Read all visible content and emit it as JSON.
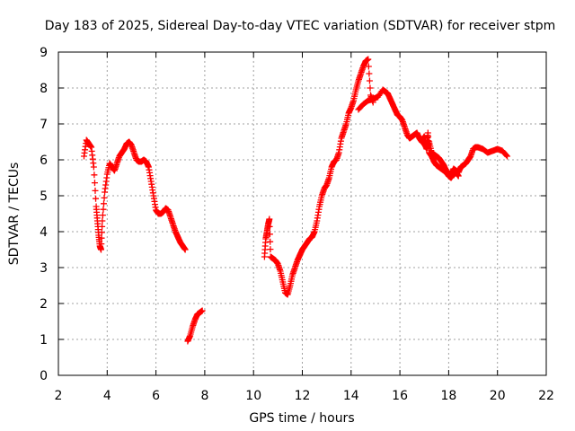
{
  "chart_data": {
    "type": "scatter",
    "title": "Day 183 of 2025, Sidereal Day-to-day VTEC variation (SDTVAR) for receiver stpm",
    "xlabel": "GPS time / hours",
    "ylabel": "SDTVAR / TECUs",
    "xlim": [
      2,
      22
    ],
    "ylim": [
      0,
      9
    ],
    "xticks": [
      2,
      4,
      6,
      8,
      10,
      12,
      14,
      16,
      18,
      20,
      22
    ],
    "yticks": [
      0,
      1,
      2,
      3,
      4,
      5,
      6,
      7,
      8,
      9
    ],
    "grid": true,
    "marker": "+",
    "series": [
      {
        "color": "#ff0000",
        "segments": [
          {
            "x": [
              3.05,
              3.15,
              3.25,
              3.35,
              3.45,
              3.55,
              3.6,
              3.65,
              3.7,
              3.75,
              3.8,
              3.9,
              4.0,
              4.1,
              4.2,
              4.3,
              4.4,
              4.5,
              4.6,
              4.7,
              4.8,
              4.9,
              5.0,
              5.1,
              5.2,
              5.3,
              5.4,
              5.5,
              5.6,
              5.7,
              5.8,
              5.9,
              6.0,
              6.1,
              6.2,
              6.3,
              6.4,
              6.5,
              6.6,
              6.7,
              6.8,
              6.9,
              7.0,
              7.1,
              7.2
            ],
            "y": [
              6.1,
              6.55,
              6.45,
              6.35,
              5.8,
              4.7,
              4.3,
              3.9,
              3.6,
              3.5,
              4.3,
              5.1,
              5.6,
              5.9,
              5.8,
              5.7,
              5.9,
              6.1,
              6.2,
              6.3,
              6.45,
              6.5,
              6.4,
              6.2,
              6.0,
              5.95,
              5.95,
              6.0,
              5.95,
              5.8,
              5.4,
              5.0,
              4.6,
              4.5,
              4.5,
              4.55,
              4.65,
              4.6,
              4.4,
              4.2,
              4.0,
              3.85,
              3.7,
              3.6,
              3.5
            ]
          },
          {
            "x": [
              7.3,
              7.4,
              7.5,
              7.6,
              7.7,
              7.8,
              7.9
            ],
            "y": [
              0.95,
              1.1,
              1.35,
              1.55,
              1.7,
              1.75,
              1.8
            ]
          },
          {
            "x": [
              10.45,
              10.5,
              10.55,
              10.6,
              10.65,
              10.7,
              10.8,
              10.9,
              11.0,
              11.1,
              11.2,
              11.3,
              11.4,
              11.5,
              11.6,
              11.7,
              11.8,
              11.9,
              12.0,
              12.1,
              12.2,
              12.3,
              12.4,
              12.5,
              12.6,
              12.7,
              12.8,
              12.9,
              13.0,
              13.1,
              13.2,
              13.3,
              13.4,
              13.5,
              13.6,
              13.7,
              13.8,
              13.9,
              14.0,
              14.1,
              14.2,
              14.3,
              14.4,
              14.5,
              14.6,
              14.7,
              14.8,
              14.9
            ],
            "y": [
              3.3,
              3.8,
              4.0,
              4.2,
              4.35,
              3.3,
              3.25,
              3.2,
              3.1,
              2.9,
              2.6,
              2.3,
              2.25,
              2.5,
              2.8,
              3.0,
              3.2,
              3.35,
              3.5,
              3.6,
              3.7,
              3.8,
              3.85,
              4.0,
              4.3,
              4.7,
              5.0,
              5.2,
              5.3,
              5.5,
              5.8,
              5.95,
              6.0,
              6.2,
              6.6,
              6.8,
              7.0,
              7.3,
              7.45,
              7.65,
              7.95,
              8.2,
              8.4,
              8.6,
              8.75,
              8.8,
              7.8,
              7.6
            ]
          },
          {
            "x": [
              14.3,
              14.5,
              14.7,
              14.9,
              15.1,
              15.3,
              15.4,
              15.5,
              15.6,
              15.7,
              15.8,
              15.9,
              16.0,
              16.1,
              16.2,
              16.3,
              16.4,
              16.5,
              16.6,
              16.7,
              16.8,
              16.9,
              17.0,
              17.1,
              17.2,
              17.3,
              17.4,
              17.5,
              17.6,
              17.7,
              17.8,
              17.9,
              18.0,
              18.1,
              18.2,
              18.3,
              18.4,
              18.5,
              18.6,
              18.7,
              18.8,
              18.9,
              19.0,
              19.1,
              19.2,
              19.4,
              19.6,
              19.8,
              20.0,
              20.2,
              20.4
            ],
            "y": [
              7.4,
              7.55,
              7.65,
              7.7,
              7.75,
              7.95,
              7.9,
              7.85,
              7.7,
              7.55,
              7.4,
              7.25,
              7.2,
              7.1,
              6.9,
              6.7,
              6.6,
              6.65,
              6.7,
              6.75,
              6.6,
              6.5,
              6.45,
              6.3,
              6.5,
              6.2,
              6.15,
              6.1,
              6.05,
              5.95,
              5.85,
              5.7,
              5.6,
              5.6,
              5.75,
              5.7,
              5.65,
              5.8,
              5.85,
              5.9,
              6.0,
              6.1,
              6.3,
              6.35,
              6.35,
              6.3,
              6.2,
              6.25,
              6.3,
              6.25,
              6.1
            ]
          },
          {
            "x": [
              16.9,
              17.0,
              17.1,
              17.15,
              17.2,
              17.3,
              17.4,
              17.5,
              17.6,
              17.7,
              17.8,
              17.9,
              18.0,
              18.1,
              18.2,
              18.3,
              18.4
            ],
            "y": [
              6.55,
              6.65,
              6.4,
              6.75,
              6.2,
              6.1,
              5.95,
              5.85,
              5.8,
              5.75,
              5.7,
              5.65,
              5.55,
              5.5,
              5.6,
              5.65,
              5.55
            ]
          }
        ]
      }
    ]
  }
}
